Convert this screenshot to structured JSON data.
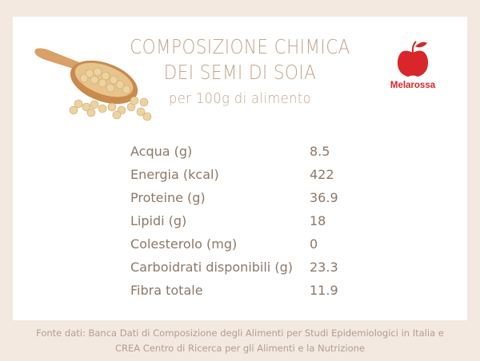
{
  "header": {
    "title_lines": [
      "COMPOSIZIONE CHIMICA",
      "DEI SEMI DI SOIA"
    ],
    "subtitle": "per 100g di alimento",
    "logo": "Melarossa"
  },
  "table": {
    "rows": [
      [
        "Acqua (g)",
        "8.5"
      ],
      [
        "Energia (kcal)",
        "422"
      ],
      [
        "Proteine (g)",
        "36.9"
      ],
      [
        "Lipidi (g)",
        "18"
      ],
      [
        "Colesterolo (mg)",
        "0"
      ],
      [
        "Carboidrati disponibili (g)",
        "23.3"
      ],
      [
        "Fibra totale",
        "11.9"
      ]
    ]
  },
  "footer": {
    "lines": [
      "Fonte dati: Banca Dati di Composizione degli Alimenti per Studi Epidemiologici in Italia e",
      "CREA Centro di Ricerca per gli Alimenti e la Nutrizione"
    ]
  }
}
